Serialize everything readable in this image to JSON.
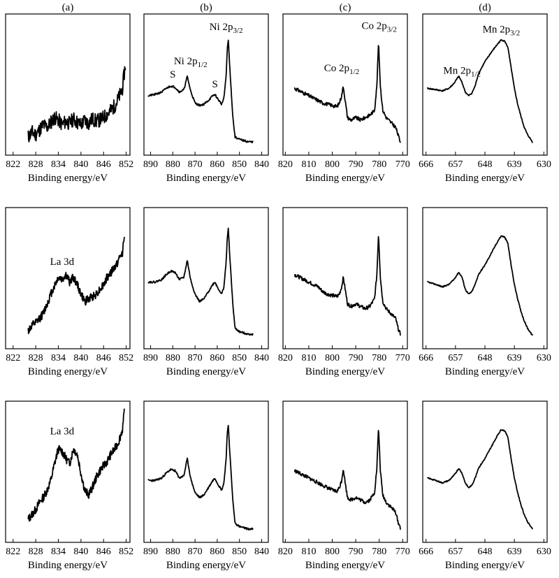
{
  "column_labels": [
    "(a)",
    "(b)",
    "(c)",
    "(d)"
  ],
  "chart_data": [
    {
      "id": "a1",
      "type": "line",
      "row": 0,
      "col": 0,
      "xlabel": "Binding energy/eV",
      "xlim": [
        820,
        853
      ],
      "xticks": [
        "822",
        "828",
        "834",
        "840",
        "846",
        "852"
      ],
      "tickvals": [
        822,
        828,
        834,
        840,
        846,
        852
      ],
      "ylim": [
        0,
        100
      ],
      "x": [
        826,
        827,
        828,
        829,
        830,
        831,
        832,
        833,
        834,
        835,
        836,
        837,
        838,
        839,
        840,
        841,
        842,
        843,
        844,
        845,
        846,
        847,
        848,
        849,
        850,
        851,
        851.8
      ],
      "y": [
        8,
        12,
        10,
        14,
        18,
        16,
        20,
        24,
        22,
        18,
        21,
        19,
        23,
        20,
        18,
        22,
        19,
        23,
        21,
        22,
        24,
        27,
        30,
        34,
        40,
        48,
        68
      ],
      "noise": 6,
      "seed": 11,
      "annotations": []
    },
    {
      "id": "b1",
      "type": "line",
      "row": 0,
      "col": 1,
      "xlabel": "Binding energy/eV",
      "xlim": [
        893,
        837
      ],
      "xticks": [
        "890",
        "880",
        "870",
        "860",
        "850",
        "840"
      ],
      "tickvals": [
        890,
        880,
        870,
        860,
        850,
        840
      ],
      "ylim": [
        0,
        100
      ],
      "x": [
        891,
        888,
        885,
        883,
        881,
        879,
        877,
        875,
        873.5,
        872,
        870,
        868,
        866,
        864,
        862,
        861,
        860,
        858,
        857,
        856,
        855.5,
        855,
        854.5,
        853,
        852,
        850,
        848,
        846,
        844
      ],
      "y": [
        42,
        43,
        45,
        48,
        50,
        49,
        45,
        47,
        58,
        46,
        36,
        34,
        35,
        38,
        42,
        43,
        40,
        35,
        40,
        58,
        80,
        88,
        70,
        25,
        8,
        6,
        5,
        4,
        4
      ],
      "noise": 0.8,
      "seed": 21,
      "annotations": [
        {
          "text": "S",
          "sub": "",
          "x": 880,
          "y": 57
        },
        {
          "text": "Ni 2p",
          "sub": "1/2",
          "x": 872,
          "y": 68
        },
        {
          "text": "S",
          "sub": "",
          "x": 861,
          "y": 49
        },
        {
          "text": "Ni 2p",
          "sub": "3/2",
          "x": 856,
          "y": 96
        }
      ]
    },
    {
      "id": "c1",
      "type": "line",
      "row": 0,
      "col": 2,
      "xlabel": "Binding energy/eV",
      "xlim": [
        821,
        768
      ],
      "xticks": [
        "820",
        "810",
        "800",
        "790",
        "780",
        "770"
      ],
      "tickvals": [
        820,
        810,
        800,
        790,
        780,
        770
      ],
      "ylim": [
        0,
        100
      ],
      "x": [
        816,
        814,
        812,
        810,
        808,
        806,
        804,
        802,
        800,
        798,
        797,
        796,
        795.3,
        794.5,
        793.5,
        792,
        790,
        789,
        788,
        786,
        784,
        782,
        781,
        780.3,
        779.5,
        778.5,
        777,
        775,
        773,
        772,
        771
      ],
      "y": [
        48,
        46,
        44,
        42,
        40,
        38,
        36,
        35,
        34,
        33,
        36,
        42,
        50,
        38,
        24,
        22,
        24,
        23,
        22,
        24,
        26,
        30,
        50,
        86,
        50,
        30,
        24,
        20,
        16,
        10,
        4
      ],
      "noise": 1.5,
      "seed": 31,
      "annotations": [
        {
          "text": "Co 2p",
          "sub": "1/2",
          "x": 796,
          "y": 62
        },
        {
          "text": "Co 2p",
          "sub": "3/2",
          "x": 780,
          "y": 97
        }
      ]
    },
    {
      "id": "d1",
      "type": "line",
      "row": 0,
      "col": 3,
      "xlabel": "Binding energy/eV",
      "xlim": [
        667,
        629
      ],
      "xticks": [
        "666",
        "657",
        "648",
        "639",
        "630"
      ],
      "tickvals": [
        666,
        657,
        648,
        639,
        630
      ],
      "ylim": [
        0,
        100
      ],
      "x": [
        665.5,
        663,
        661,
        659,
        657.5,
        656,
        655,
        654,
        653,
        652,
        651,
        650,
        648,
        646,
        644,
        643,
        642,
        641,
        640,
        639,
        638,
        637,
        636,
        635,
        634,
        633.5
      ],
      "y": [
        48,
        47,
        46,
        48,
        52,
        58,
        53,
        45,
        42,
        44,
        50,
        60,
        70,
        78,
        85,
        88,
        87,
        82,
        65,
        48,
        35,
        25,
        16,
        10,
        6,
        4
      ],
      "noise": 0.5,
      "seed": 41,
      "annotations": [
        {
          "text": "Mn 2p",
          "sub": "1/2",
          "x": 655,
          "y": 60
        },
        {
          "text": "Mn 2p",
          "sub": "3/2",
          "x": 643,
          "y": 94
        }
      ]
    },
    {
      "id": "a2",
      "type": "line",
      "row": 1,
      "col": 0,
      "xlabel": "Binding energy/eV",
      "xlim": [
        820,
        853
      ],
      "xticks": [
        "822",
        "828",
        "834",
        "840",
        "846",
        "852"
      ],
      "tickvals": [
        822,
        828,
        834,
        840,
        846,
        852
      ],
      "ylim": [
        0,
        100
      ],
      "x": [
        826,
        827,
        828,
        829,
        830,
        831,
        832,
        833,
        834,
        835,
        836,
        837,
        838,
        839,
        840,
        841,
        842,
        843,
        844,
        845,
        846,
        847,
        848,
        849,
        850,
        851,
        851.5
      ],
      "y": [
        8,
        12,
        14,
        18,
        22,
        30,
        38,
        45,
        52,
        50,
        54,
        48,
        52,
        46,
        38,
        32,
        34,
        36,
        38,
        42,
        46,
        52,
        56,
        60,
        66,
        72,
        88
      ],
      "noise": 3.5,
      "seed": 12,
      "annotations": [
        {
          "text": "La 3d",
          "sub": "",
          "x": 835,
          "y": 62
        }
      ]
    },
    {
      "id": "b2",
      "type": "line",
      "row": 1,
      "col": 1,
      "xlabel": "Binding energy/eV",
      "xlim": [
        893,
        837
      ],
      "xticks": [
        "890",
        "880",
        "870",
        "860",
        "850",
        "840"
      ],
      "tickvals": [
        890,
        880,
        870,
        860,
        850,
        840
      ],
      "ylim": [
        0,
        100
      ],
      "x": [
        891,
        888,
        885,
        883,
        881,
        879,
        877,
        875,
        873.5,
        872,
        870,
        868,
        866,
        864,
        862,
        861,
        860,
        858,
        857,
        856,
        855.5,
        855,
        854.5,
        853,
        852,
        850,
        848,
        846,
        844
      ],
      "y": [
        48,
        48,
        50,
        54,
        57,
        56,
        50,
        52,
        66,
        50,
        38,
        32,
        34,
        40,
        46,
        48,
        44,
        38,
        44,
        64,
        84,
        92,
        74,
        30,
        10,
        7,
        6,
        5,
        5
      ],
      "noise": 0.8,
      "seed": 22,
      "annotations": []
    },
    {
      "id": "c2",
      "type": "line",
      "row": 1,
      "col": 2,
      "xlabel": "Binding energy/eV",
      "xlim": [
        821,
        768
      ],
      "xticks": [
        "820",
        "810",
        "800",
        "790",
        "780",
        "770"
      ],
      "tickvals": [
        820,
        810,
        800,
        790,
        780,
        770
      ],
      "ylim": [
        0,
        100
      ],
      "x": [
        816,
        814,
        812,
        810,
        808,
        806,
        804,
        802,
        800,
        798,
        797,
        796,
        795.3,
        794.5,
        793.5,
        792,
        790,
        789,
        788,
        786,
        784,
        782,
        781,
        780.3,
        779.5,
        778.5,
        777,
        775,
        773,
        772,
        771
      ],
      "y": [
        54,
        52,
        50,
        48,
        46,
        44,
        40,
        38,
        37,
        36,
        38,
        44,
        52,
        42,
        30,
        28,
        30,
        29,
        28,
        26,
        28,
        34,
        54,
        88,
        52,
        32,
        26,
        22,
        18,
        10,
        5
      ],
      "noise": 1.5,
      "seed": 32,
      "annotations": []
    },
    {
      "id": "d2",
      "type": "line",
      "row": 1,
      "col": 3,
      "xlabel": "Binding energy/eV",
      "xlim": [
        667,
        629
      ],
      "xticks": [
        "666",
        "657",
        "648",
        "639",
        "630"
      ],
      "tickvals": [
        666,
        657,
        648,
        639,
        630
      ],
      "ylim": [
        0,
        100
      ],
      "x": [
        665.5,
        663,
        661,
        659,
        657.5,
        656,
        655,
        654,
        653,
        652,
        651,
        650,
        648,
        646,
        644,
        643,
        642,
        641,
        640,
        639,
        638,
        637,
        636,
        635,
        634,
        633.5
      ],
      "y": [
        48,
        46,
        44,
        46,
        50,
        56,
        52,
        42,
        38,
        40,
        46,
        54,
        62,
        72,
        82,
        86,
        85,
        80,
        62,
        46,
        34,
        24,
        16,
        10,
        6,
        4
      ],
      "noise": 0.5,
      "seed": 42,
      "annotations": []
    },
    {
      "id": "a3",
      "type": "line",
      "row": 2,
      "col": 0,
      "xlabel": "Binding energy/eV",
      "xlim": [
        820,
        853
      ],
      "xticks": [
        "822",
        "828",
        "834",
        "840",
        "846",
        "852"
      ],
      "tickvals": [
        822,
        828,
        834,
        840,
        846,
        852
      ],
      "ylim": [
        0,
        100
      ],
      "x": [
        826,
        827,
        828,
        829,
        830,
        831,
        832,
        833,
        834,
        835,
        836,
        837,
        838,
        839,
        840,
        841,
        842,
        843,
        844,
        845,
        846,
        847,
        848,
        849,
        850,
        851,
        851.5
      ],
      "y": [
        12,
        16,
        20,
        26,
        30,
        36,
        44,
        58,
        70,
        68,
        62,
        58,
        70,
        66,
        50,
        36,
        32,
        38,
        46,
        52,
        56,
        60,
        66,
        70,
        76,
        86,
        100
      ],
      "noise": 3.5,
      "seed": 13,
      "annotations": [
        {
          "text": "La 3d",
          "sub": "",
          "x": 835,
          "y": 82
        }
      ]
    },
    {
      "id": "b3",
      "type": "line",
      "row": 2,
      "col": 1,
      "xlabel": "Binding energy/eV",
      "xlim": [
        893,
        837
      ],
      "xticks": [
        "890",
        "880",
        "870",
        "860",
        "850",
        "840"
      ],
      "tickvals": [
        890,
        880,
        870,
        860,
        850,
        840
      ],
      "ylim": [
        0,
        100
      ],
      "x": [
        891,
        888,
        885,
        883,
        881,
        879,
        877,
        875,
        873.5,
        872,
        870,
        868,
        866,
        864,
        862,
        861,
        860,
        858,
        857,
        856,
        855.5,
        855,
        854.5,
        853,
        852,
        850,
        848,
        846,
        844
      ],
      "y": [
        44,
        44,
        46,
        50,
        53,
        52,
        46,
        48,
        62,
        46,
        34,
        30,
        32,
        38,
        44,
        46,
        42,
        36,
        42,
        62,
        82,
        90,
        72,
        28,
        9,
        6,
        5,
        4,
        4
      ],
      "noise": 0.8,
      "seed": 23,
      "annotations": []
    },
    {
      "id": "c3",
      "type": "line",
      "row": 2,
      "col": 2,
      "xlabel": "Binding energy/eV",
      "xlim": [
        821,
        768
      ],
      "xticks": [
        "820",
        "810",
        "800",
        "790",
        "780",
        "770"
      ],
      "tickvals": [
        820,
        810,
        800,
        790,
        780,
        770
      ],
      "ylim": [
        0,
        100
      ],
      "x": [
        816,
        814,
        812,
        810,
        808,
        806,
        804,
        802,
        800,
        798,
        797,
        796,
        795.3,
        794.5,
        793.5,
        792,
        790,
        789,
        788,
        786,
        784,
        782,
        781,
        780.3,
        779.5,
        778.5,
        777,
        775,
        773,
        772,
        771
      ],
      "y": [
        52,
        50,
        48,
        46,
        44,
        42,
        40,
        38,
        36,
        35,
        38,
        44,
        54,
        42,
        30,
        28,
        30,
        29,
        28,
        26,
        28,
        34,
        54,
        88,
        52,
        32,
        26,
        22,
        18,
        10,
        5
      ],
      "noise": 1.5,
      "seed": 33,
      "annotations": []
    },
    {
      "id": "d3",
      "type": "line",
      "row": 2,
      "col": 3,
      "xlabel": "Binding energy/eV",
      "xlim": [
        667,
        629
      ],
      "xticks": [
        "666",
        "657",
        "648",
        "639",
        "630"
      ],
      "tickvals": [
        666,
        657,
        648,
        639,
        630
      ],
      "ylim": [
        0,
        100
      ],
      "x": [
        665.5,
        663,
        661,
        659,
        657.5,
        656,
        655,
        654,
        653,
        652,
        651,
        650,
        648,
        646,
        644,
        643,
        642,
        641,
        640,
        639,
        638,
        637,
        636,
        635,
        634,
        633.5
      ],
      "y": [
        46,
        44,
        42,
        44,
        48,
        54,
        50,
        42,
        38,
        40,
        46,
        54,
        62,
        72,
        82,
        86,
        85,
        80,
        62,
        46,
        34,
        24,
        16,
        10,
        6,
        4
      ],
      "noise": 0.5,
      "seed": 43,
      "annotations": []
    }
  ]
}
